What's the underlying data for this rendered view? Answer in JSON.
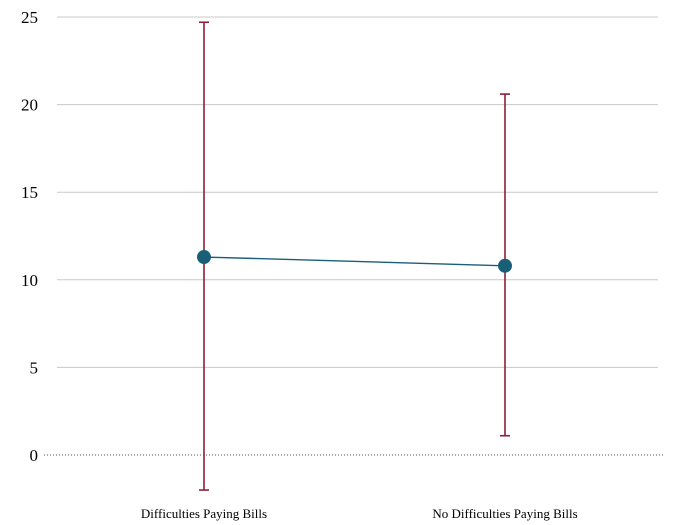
{
  "chart_data": {
    "type": "line",
    "title": "",
    "xlabel": "",
    "ylabel": "",
    "categories": [
      "Difficulties Paying Bills",
      "No Difficulties Paying Bills"
    ],
    "series": [
      {
        "values": [
          11.3,
          10.8
        ],
        "error_low": [
          -2.0,
          1.1
        ],
        "error_high": [
          24.7,
          20.6
        ]
      }
    ],
    "ylim": [
      0,
      25
    ],
    "yticks": [
      "0",
      "5",
      "10",
      "15",
      "20",
      "25"
    ],
    "grid": true,
    "colors": {
      "point": "#1a5f78",
      "line": "#1a5f78",
      "error": "#8c1f3a"
    }
  }
}
